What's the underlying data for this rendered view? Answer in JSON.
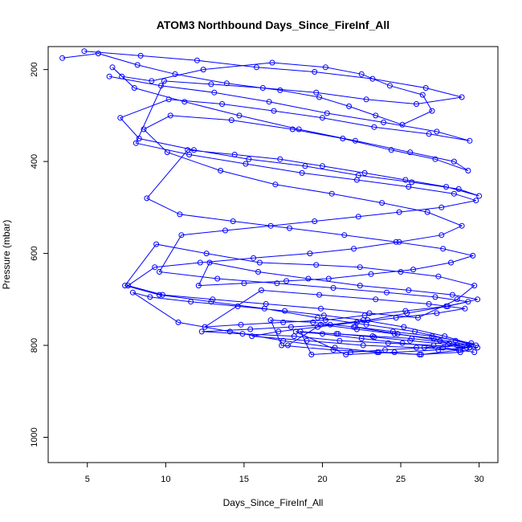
{
  "chart_data": {
    "type": "scatter",
    "title": "ATOM3 Northbound Days_Since_FireInf_All",
    "xlabel": "Days_Since_FireInf_All",
    "ylabel": "Pressure (mbar)",
    "xlim": [
      2.5,
      31.2
    ],
    "ylim": [
      1055,
      150
    ],
    "y_reversed": true,
    "x_ticks": [
      5,
      10,
      15,
      20,
      25,
      30
    ],
    "y_ticks": [
      200,
      400,
      600,
      800,
      1000
    ],
    "grid": false,
    "legend": "none",
    "color": "#0000ff",
    "marker": "open-circle",
    "connected": true,
    "series": [
      {
        "x": [
          3.4,
          5.7,
          8.2,
          10.6,
          13.9,
          17.3,
          19.8,
          21.7,
          23.4,
          25.1,
          27.0,
          26.4,
          24.3,
          22.5,
          20.2,
          16.8,
          12.4,
          9.1,
          7.2,
          6.6,
          8.0,
          11.2,
          14.7,
          18.5,
          22.1,
          25.6,
          28.4,
          29.3,
          27.2,
          24.4,
          21.3,
          18.1,
          14.2,
          10.3,
          8.6,
          10.1,
          13.5,
          17.0,
          20.6,
          23.8,
          26.7,
          28.9,
          27.6,
          24.9,
          22.0,
          19.2,
          15.6,
          12.2,
          9.3,
          7.6,
          9.8,
          13.0,
          16.4,
          19.9,
          23.0,
          26.1,
          28.6,
          29.7,
          27.4,
          25.0,
          22.4,
          19.6,
          16.0,
          12.6,
          9.4,
          7.4,
          9.6,
          12.9,
          16.3,
          19.7,
          22.8,
          25.9,
          28.5,
          29.8,
          27.8,
          25.2,
          22.6,
          20.1,
          17.6,
          14.6,
          11.6,
          9.0,
          7.9,
          10.8,
          14.1,
          17.5,
          20.8,
          23.6,
          26.3,
          28.8,
          29.5,
          27.1,
          24.6,
          22.2,
          19.9,
          17.8
        ],
        "y": [
          175,
          165,
          190,
          210,
          230,
          245,
          260,
          280,
          300,
          320,
          290,
          255,
          235,
          210,
          195,
          185,
          200,
          225,
          215,
          195,
          240,
          270,
          300,
          330,
          355,
          380,
          400,
          420,
          395,
          375,
          350,
          330,
          310,
          300,
          330,
          380,
          420,
          450,
          470,
          490,
          510,
          540,
          560,
          575,
          590,
          600,
          610,
          620,
          630,
          670,
          690,
          700,
          710,
          720,
          730,
          740,
          700,
          670,
          650,
          640,
          630,
          625,
          620,
          600,
          580,
          670,
          690,
          705,
          720,
          740,
          755,
          770,
          790,
          800,
          780,
          760,
          745,
          735,
          725,
          715,
          705,
          695,
          685,
          750,
          770,
          790,
          805,
          815,
          820,
          810,
          800,
          785,
          775,
          765,
          755,
          800
        ]
      },
      {
        "x": [
          6.4,
          9.7,
          13.1,
          16.6,
          20.3,
          23.9,
          27.3,
          29.4,
          26.8,
          23.3,
          20.0,
          16.9,
          13.6,
          10.2,
          7.1,
          8.3,
          11.8,
          15.3,
          18.9,
          22.3,
          25.7,
          28.7,
          30.0,
          27.9,
          25.3,
          22.7,
          20.0,
          17.3,
          14.4,
          11.4,
          8.8,
          10.9,
          14.3,
          17.9,
          21.4,
          24.7,
          27.7,
          29.6,
          28.2,
          25.8,
          23.1,
          20.4,
          17.7,
          15.0,
          12.1,
          12.8,
          15.9,
          19.1,
          22.4,
          25.5,
          28.3,
          29.9,
          28.0,
          25.4,
          22.9,
          20.5,
          18.0,
          15.4,
          12.3,
          14.9,
          18.2,
          21.1,
          24.2,
          27.1,
          29.2,
          27.5,
          24.8,
          22.0,
          19.4,
          16.7,
          17.4,
          20.7,
          23.5,
          26.2,
          28.8,
          29.9,
          28.1,
          25.7,
          23.2,
          20.9,
          18.6,
          19.3,
          21.8,
          24.0,
          26.5,
          28.6,
          29.5,
          27.0,
          24.5,
          22.1
        ],
        "y": [
          215,
          235,
          250,
          270,
          295,
          315,
          335,
          355,
          340,
          325,
          305,
          290,
          275,
          265,
          305,
          350,
          375,
          395,
          410,
          430,
          445,
          460,
          475,
          455,
          440,
          425,
          410,
          395,
          385,
          375,
          480,
          515,
          530,
          545,
          560,
          575,
          590,
          605,
          620,
          635,
          645,
          655,
          660,
          665,
          670,
          620,
          640,
          655,
          670,
          680,
          690,
          700,
          715,
          730,
          745,
          755,
          760,
          765,
          770,
          775,
          780,
          790,
          795,
          800,
          805,
          790,
          775,
          760,
          750,
          745,
          800,
          810,
          815,
          820,
          815,
          805,
          795,
          785,
          780,
          775,
          770,
          820,
          815,
          810,
          805,
          800,
          795,
          780,
          770,
          760
        ]
      },
      {
        "x": [
          4.8,
          8.4,
          12.0,
          15.8,
          19.5,
          23.2,
          26.6,
          28.9,
          26.0,
          22.8,
          19.6,
          16.2,
          12.9,
          9.9,
          8.1,
          11.5,
          15.1,
          18.7,
          22.2,
          25.5,
          28.4,
          29.8,
          27.6,
          24.9,
          22.3,
          19.5,
          16.7,
          13.8,
          11.0,
          9.6,
          13.3,
          17.1,
          20.7,
          24.1,
          27.2,
          29.3,
          27.9,
          25.3,
          22.7,
          20.2,
          17.5,
          14.8,
          12.5,
          16.1,
          19.8,
          23.4,
          26.8,
          29.1,
          27.3,
          24.7,
          22.2,
          19.7,
          17.2,
          15.5,
          19.0,
          22.6,
          26.0,
          28.7,
          29.7,
          27.7,
          25.1,
          22.5,
          20.0,
          18.3,
          21.5,
          24.6,
          27.4,
          29.4,
          28.0,
          25.6,
          23.3,
          21.0
        ],
        "y": [
          160,
          170,
          180,
          195,
          205,
          220,
          240,
          260,
          275,
          265,
          250,
          240,
          232,
          225,
          360,
          385,
          405,
          425,
          440,
          455,
          470,
          485,
          500,
          510,
          520,
          530,
          540,
          550,
          560,
          640,
          655,
          665,
          675,
          685,
          695,
          705,
          715,
          725,
          735,
          745,
          750,
          755,
          760,
          680,
          690,
          700,
          710,
          720,
          730,
          740,
          750,
          760,
          770,
          780,
          790,
          800,
          805,
          810,
          815,
          805,
          795,
          785,
          775,
          770,
          820,
          815,
          810,
          805,
          798,
          790,
          782,
          775
        ]
      }
    ]
  }
}
